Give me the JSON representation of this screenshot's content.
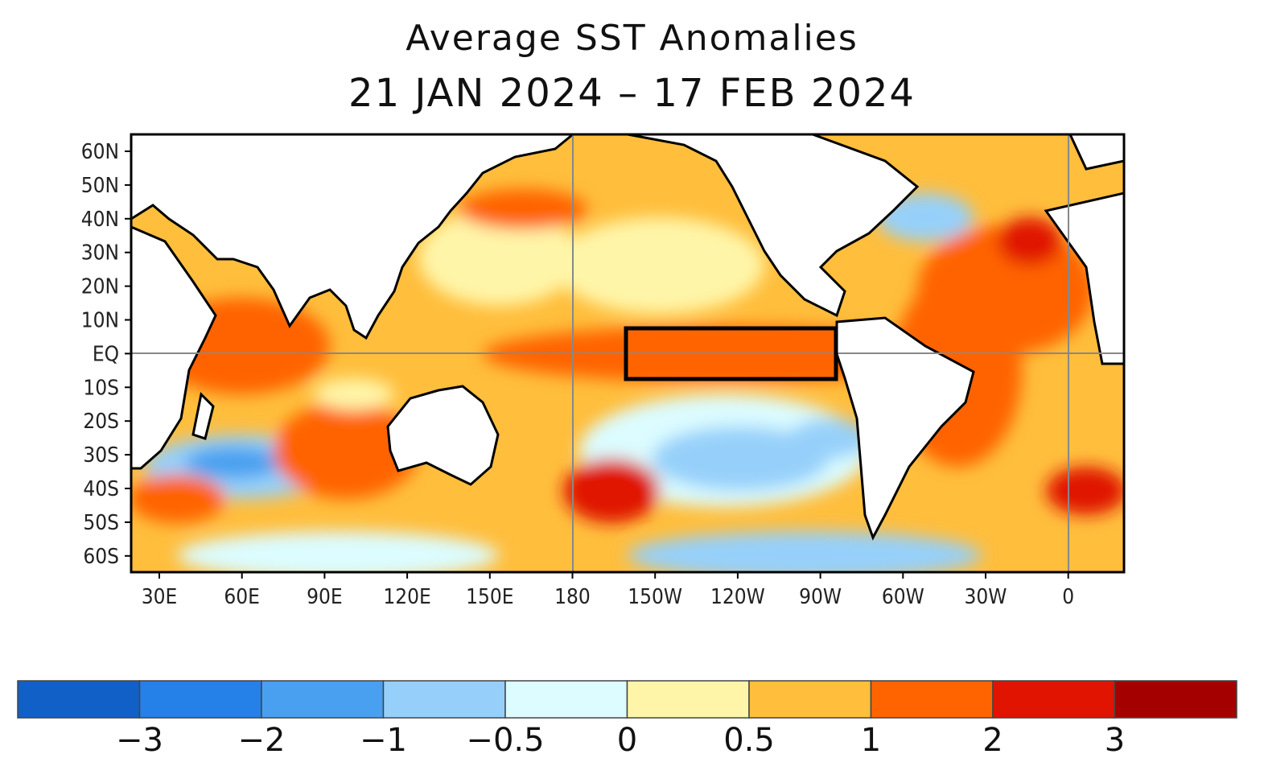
{
  "title": "Average SST Anomalies",
  "subtitle": "21 JAN 2024 – 17 FEB 2024",
  "lat_labels": [
    "60N",
    "50N",
    "40N",
    "30N",
    "20N",
    "10N",
    "EQ",
    "10S",
    "20S",
    "30S",
    "40S",
    "50S",
    "60S"
  ],
  "lon_labels": [
    "30E",
    "60E",
    "90E",
    "120E",
    "150E",
    "180",
    "150W",
    "120W",
    "90W",
    "60W",
    "30W",
    "0"
  ],
  "colorbar": {
    "colors": [
      "#1160c8",
      "#2580e8",
      "#4aa0f0",
      "#96d0fa",
      "#dcfcff",
      "#fff5a8",
      "#ffbe3c",
      "#ff6400",
      "#e01400",
      "#a50000"
    ],
    "tick_labels": [
      "−3",
      "−2",
      "−1",
      "−0.5",
      "0",
      "0.5",
      "1",
      "2",
      "3"
    ]
  },
  "highlight_box": {
    "lon_range": [
      "160W",
      "85W"
    ],
    "lat_range": [
      "5N",
      "5S"
    ]
  }
}
